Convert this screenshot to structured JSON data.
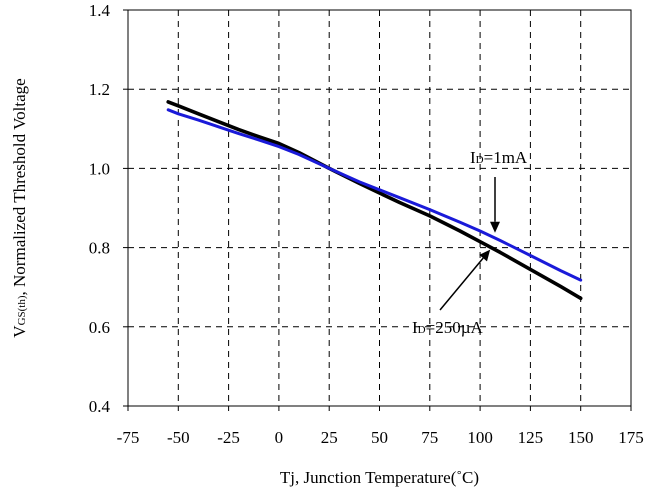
{
  "chart_data": {
    "type": "line",
    "title": "",
    "xlabel": "Tj, Junction Temperature(˚C)",
    "ylabel": {
      "prefix": "V",
      "subscript": "GS(th)",
      "suffix": ", Normalized Threshold Voltage"
    },
    "xlim": [
      -75,
      175
    ],
    "ylim": [
      0.4,
      1.4
    ],
    "xticks": [
      -75,
      -50,
      -25,
      0,
      25,
      50,
      75,
      100,
      125,
      150,
      175
    ],
    "yticks": [
      0.4,
      0.6,
      0.8,
      1.0,
      1.2,
      1.4
    ],
    "ytick_labels": [
      "0.4",
      "0.6",
      "0.8",
      "1.0",
      "1.2",
      "1.4"
    ],
    "grid": true,
    "series": [
      {
        "name": "ID=250µA",
        "color": "#000000",
        "x": [
          -55,
          -50,
          -40,
          -30,
          -20,
          -10,
          0,
          10,
          25,
          40,
          50,
          60,
          75,
          90,
          100,
          110,
          125,
          140,
          150
        ],
        "y": [
          1.168,
          1.158,
          1.138,
          1.118,
          1.098,
          1.08,
          1.063,
          1.04,
          1.0,
          0.962,
          0.938,
          0.914,
          0.88,
          0.842,
          0.815,
          0.788,
          0.745,
          0.702,
          0.672
        ]
      },
      {
        "name": "ID=1mA",
        "color": "#1a1ad9",
        "x": [
          -55,
          -50,
          -40,
          -30,
          -20,
          -10,
          0,
          10,
          25,
          40,
          50,
          60,
          75,
          90,
          100,
          110,
          125,
          140,
          150
        ],
        "y": [
          1.148,
          1.138,
          1.122,
          1.105,
          1.088,
          1.072,
          1.055,
          1.035,
          1.0,
          0.966,
          0.946,
          0.926,
          0.896,
          0.864,
          0.842,
          0.818,
          0.78,
          0.742,
          0.718
        ]
      }
    ],
    "annotations": [
      {
        "id": "a1",
        "prefix": "I",
        "subscript": "D",
        "suffix": "=1mA",
        "target": [
          106,
          0.83
        ]
      },
      {
        "id": "a2",
        "prefix": "I",
        "subscript": "D",
        "suffix": "=250µA",
        "target": [
          106,
          0.815
        ]
      }
    ]
  }
}
